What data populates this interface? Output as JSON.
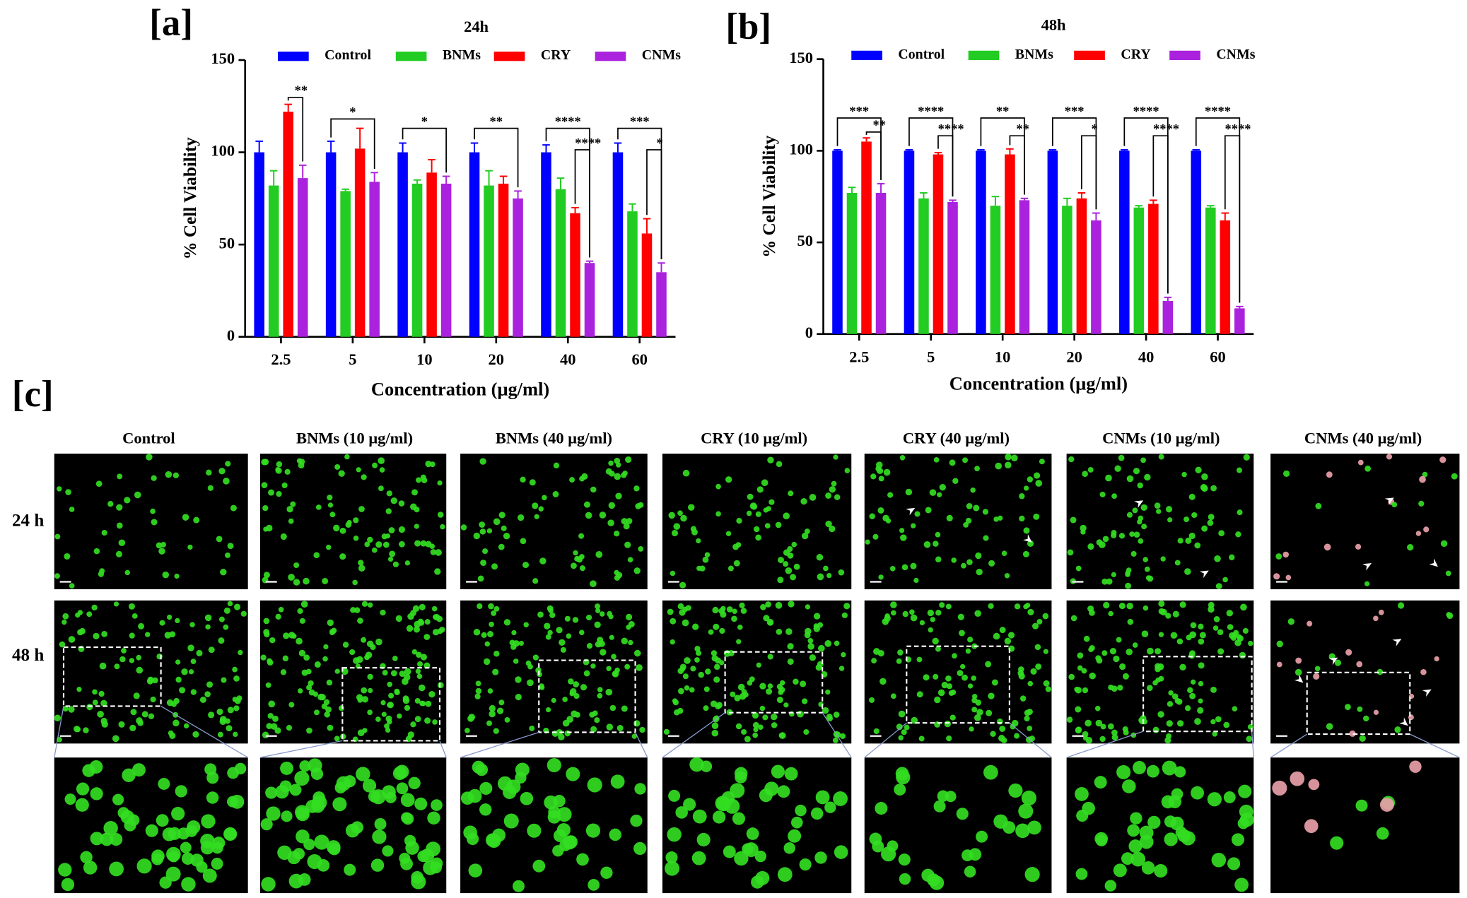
{
  "panels": {
    "a": "[a]",
    "b": "[b]",
    "c": "[c]"
  },
  "chart_data": [
    {
      "type": "bar",
      "title": "24h",
      "x_label": "Concentration (μg/ml)",
      "y_label": "% Cell Viability",
      "categories": [
        "2.5",
        "5",
        "10",
        "20",
        "40",
        "60"
      ],
      "series": [
        {
          "name": "Control",
          "color": "#0000ff",
          "values": [
            100,
            100,
            100,
            100,
            100,
            100
          ],
          "errors": [
            6,
            6,
            5,
            5,
            4,
            5
          ]
        },
        {
          "name": "BNMs",
          "color": "#22cc22",
          "values": [
            82,
            79,
            83,
            82,
            80,
            68
          ],
          "errors": [
            8,
            1,
            2,
            8,
            6,
            4
          ]
        },
        {
          "name": "CRY",
          "color": "#ff0000",
          "values": [
            122,
            102,
            89,
            83,
            67,
            56
          ],
          "errors": [
            4,
            11,
            7,
            4,
            3,
            8
          ]
        },
        {
          "name": "CNMs",
          "color": "#aa22dd",
          "values": [
            86,
            84,
            83,
            75,
            40,
            35
          ],
          "errors": [
            7,
            5,
            4,
            4,
            1,
            5
          ]
        }
      ],
      "ylim": [
        0,
        150
      ],
      "yticks": [
        0,
        50,
        100,
        150
      ],
      "annotations": [
        "**",
        "*",
        "*",
        "**",
        "****",
        "****",
        "***",
        "*"
      ]
    },
    {
      "type": "bar",
      "title": "48h",
      "x_label": "Concentration (μg/ml)",
      "y_label": "% Cell Viability",
      "categories": [
        "2.5",
        "5",
        "10",
        "20",
        "40",
        "60"
      ],
      "series": [
        {
          "name": "Control",
          "color": "#0000ff",
          "values": [
            100,
            100,
            100,
            100,
            100,
            100
          ],
          "errors": [
            0.5,
            0.5,
            0.5,
            0.5,
            0.5,
            0.5
          ]
        },
        {
          "name": "BNMs",
          "color": "#22cc22",
          "values": [
            77,
            74,
            70,
            70,
            69,
            69
          ],
          "errors": [
            3,
            3,
            5,
            4,
            1,
            1
          ]
        },
        {
          "name": "CRY",
          "color": "#ff0000",
          "values": [
            105,
            98,
            98,
            74,
            71,
            62
          ],
          "errors": [
            2,
            1,
            3,
            3,
            2,
            4
          ]
        },
        {
          "name": "CNMs",
          "color": "#aa22dd",
          "values": [
            77,
            72,
            73,
            62,
            18,
            14
          ],
          "errors": [
            5,
            1,
            1,
            4,
            2,
            1
          ]
        }
      ],
      "ylim": [
        0,
        150
      ],
      "yticks": [
        0,
        50,
        100,
        150
      ],
      "annotations": [
        "***",
        "**",
        "****",
        "****",
        "**",
        "**",
        "***",
        "*",
        "****",
        "****",
        "****",
        "****"
      ]
    }
  ],
  "panel_c": {
    "columns": [
      "Control",
      "BNMs (10 μg/ml)",
      "BNMs  (40 μg/ml)",
      "CRY (10 μg/ml)",
      "CRY (40 μg/ml)",
      "CNMs (10 μg/ml)",
      "CNMs  (40 μg/ml)"
    ],
    "rows": [
      "24 h",
      "48 h"
    ]
  }
}
